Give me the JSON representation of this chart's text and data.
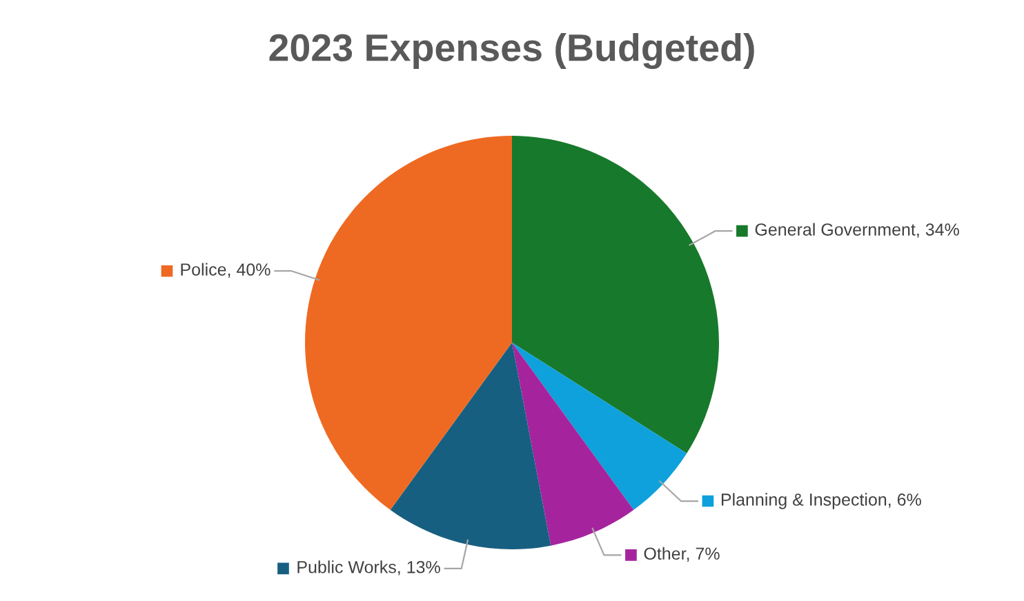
{
  "chart_data": {
    "type": "pie",
    "title": "2023 Expenses (Budgeted)",
    "categories": [
      "General Government",
      "Planning & Inspection",
      "Other",
      "Public Works",
      "Police"
    ],
    "values": [
      34,
      6,
      7,
      13,
      40
    ],
    "value_labels": [
      "34%",
      "6%",
      "7%",
      "13%",
      "40%"
    ],
    "legend": true,
    "colors": [
      "#17792b",
      "#0ea1dc",
      "#a5249e",
      "#175f81",
      "#ee6a22"
    ]
  }
}
